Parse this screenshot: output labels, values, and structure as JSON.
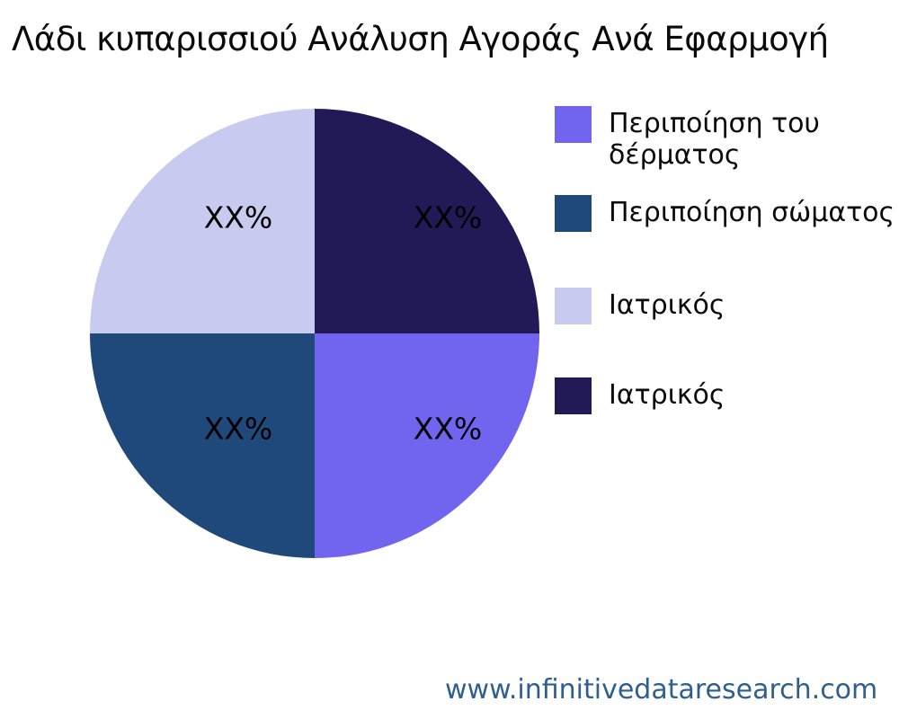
{
  "chart_data": {
    "type": "pie",
    "title": "Λάδι κυπαρισσιού Ανάλυση Αγοράς Ανά Εφαρμογή",
    "segments": [
      {
        "label": "Περιποίηση του δέρματος",
        "value": 25,
        "display_value": "XX%",
        "color": "#7164EE",
        "position": "bottom-right"
      },
      {
        "label": "Περιποίηση σώματος",
        "value": 25,
        "display_value": "XX%",
        "color": "#20497B",
        "position": "bottom-left"
      },
      {
        "label": "Ιατρικός",
        "value": 25,
        "display_value": "XX%",
        "color": "#C8CAF0",
        "position": "top-left"
      },
      {
        "label": "Ιατρικός",
        "value": 25,
        "display_value": "XX%",
        "color": "#211A57",
        "position": "top-right"
      }
    ],
    "values_are_placeholders": true,
    "start_angle_deg": 90,
    "direction": "clockwise",
    "legend_position": "right",
    "background_color": "#ffffff",
    "text_color": "#0a0a0a"
  },
  "footer": {
    "website": "www.infinitivedataresearch.com",
    "color": "#2F5F8F"
  }
}
